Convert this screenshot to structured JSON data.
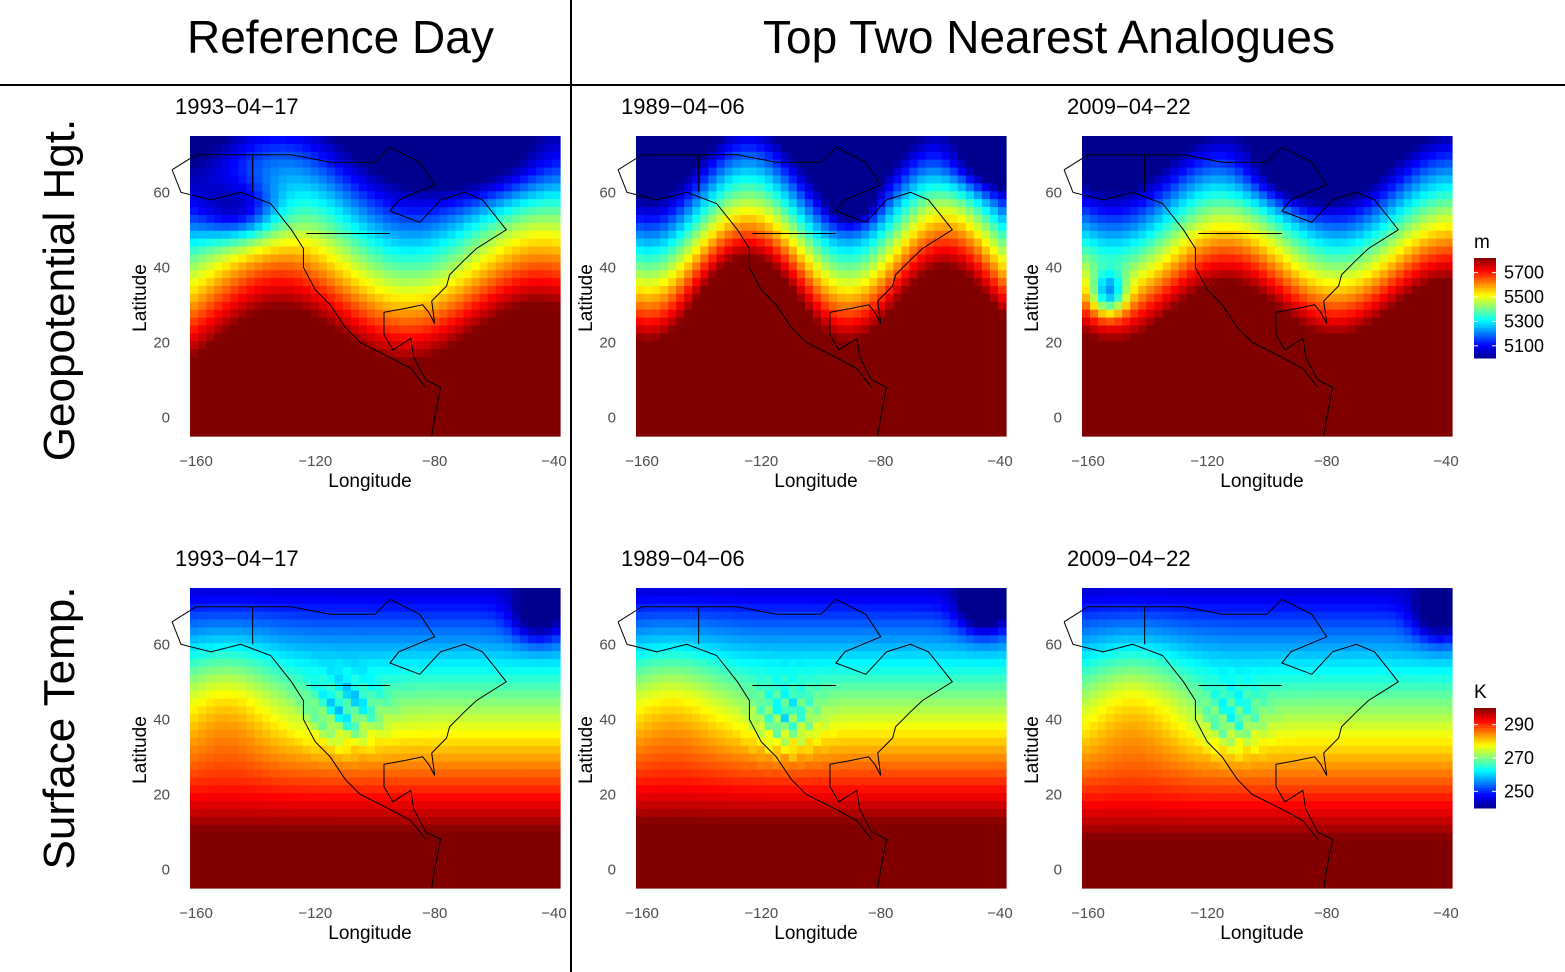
{
  "headers": {
    "reference": "Reference Day",
    "analogues": "Top Two Nearest Analogues"
  },
  "rows": {
    "geopotential": "Geopotential Hgt.",
    "surface": "Surface Temp."
  },
  "chart_data": [
    {
      "type": "heatmap",
      "title": "1993−04−17",
      "variable": "geopotential",
      "xlabel": "Longitude",
      "ylabel": "Latitude",
      "xlim": [
        -162,
        -38
      ],
      "ylim": [
        -5,
        75
      ],
      "xticks": [
        -160,
        -120,
        -80,
        -40
      ],
      "yticks": [
        0,
        20,
        40,
        60
      ],
      "xtick_labels": [
        "−160",
        "−120",
        "−80",
        "−40"
      ],
      "ytick_labels": [
        "0",
        "20",
        "40",
        "60"
      ]
    },
    {
      "type": "heatmap",
      "title": "1989−04−06",
      "variable": "geopotential",
      "xlabel": "Longitude",
      "ylabel": "Latitude",
      "xlim": [
        -162,
        -38
      ],
      "ylim": [
        -5,
        75
      ],
      "xticks": [
        -160,
        -120,
        -80,
        -40
      ],
      "yticks": [
        0,
        20,
        40,
        60
      ],
      "xtick_labels": [
        "−160",
        "−120",
        "−80",
        "−40"
      ],
      "ytick_labels": [
        "0",
        "20",
        "40",
        "60"
      ]
    },
    {
      "type": "heatmap",
      "title": "2009−04−22",
      "variable": "geopotential",
      "xlabel": "Longitude",
      "ylabel": "Latitude",
      "xlim": [
        -162,
        -38
      ],
      "ylim": [
        -5,
        75
      ],
      "xticks": [
        -160,
        -120,
        -80,
        -40
      ],
      "yticks": [
        0,
        20,
        40,
        60
      ],
      "xtick_labels": [
        "−160",
        "−120",
        "−80",
        "−40"
      ],
      "ytick_labels": [
        "0",
        "20",
        "40",
        "60"
      ]
    },
    {
      "type": "heatmap",
      "title": "1993−04−17",
      "variable": "surface",
      "xlabel": "Longitude",
      "ylabel": "Latitude",
      "xlim": [
        -162,
        -38
      ],
      "ylim": [
        -5,
        75
      ],
      "xticks": [
        -160,
        -120,
        -80,
        -40
      ],
      "yticks": [
        0,
        20,
        40,
        60
      ],
      "xtick_labels": [
        "−160",
        "−120",
        "−80",
        "−40"
      ],
      "ytick_labels": [
        "0",
        "20",
        "40",
        "60"
      ]
    },
    {
      "type": "heatmap",
      "title": "1989−04−06",
      "variable": "surface",
      "xlabel": "Longitude",
      "ylabel": "Latitude",
      "xlim": [
        -162,
        -38
      ],
      "ylim": [
        -5,
        75
      ],
      "xticks": [
        -160,
        -120,
        -80,
        -40
      ],
      "yticks": [
        0,
        20,
        40,
        60
      ],
      "xtick_labels": [
        "−160",
        "−120",
        "−80",
        "−40"
      ],
      "ytick_labels": [
        "0",
        "20",
        "40",
        "60"
      ]
    },
    {
      "type": "heatmap",
      "title": "2009−04−22",
      "variable": "surface",
      "xlabel": "Longitude",
      "ylabel": "Latitude",
      "xlim": [
        -162,
        -38
      ],
      "ylim": [
        -5,
        75
      ],
      "xticks": [
        -160,
        -120,
        -80,
        -40
      ],
      "yticks": [
        0,
        20,
        40,
        60
      ],
      "xtick_labels": [
        "−160",
        "−120",
        "−80",
        "−40"
      ],
      "ytick_labels": [
        "0",
        "20",
        "40",
        "60"
      ]
    }
  ],
  "legends": {
    "geopotential": {
      "unit": "m",
      "range": [
        5000,
        5820
      ],
      "ticks": [
        5700,
        5500,
        5300,
        5100
      ],
      "tick_labels": [
        "5700",
        "5500",
        "5300",
        "5100"
      ]
    },
    "surface": {
      "unit": "K",
      "range": [
        240,
        300
      ],
      "ticks": [
        290,
        270,
        250
      ],
      "tick_labels": [
        "290",
        "270",
        "250"
      ]
    }
  },
  "colormap": [
    "#00008f",
    "#0000ff",
    "#0080ff",
    "#00ffff",
    "#80ff80",
    "#ffff00",
    "#ff8000",
    "#ff0000",
    "#800000"
  ]
}
